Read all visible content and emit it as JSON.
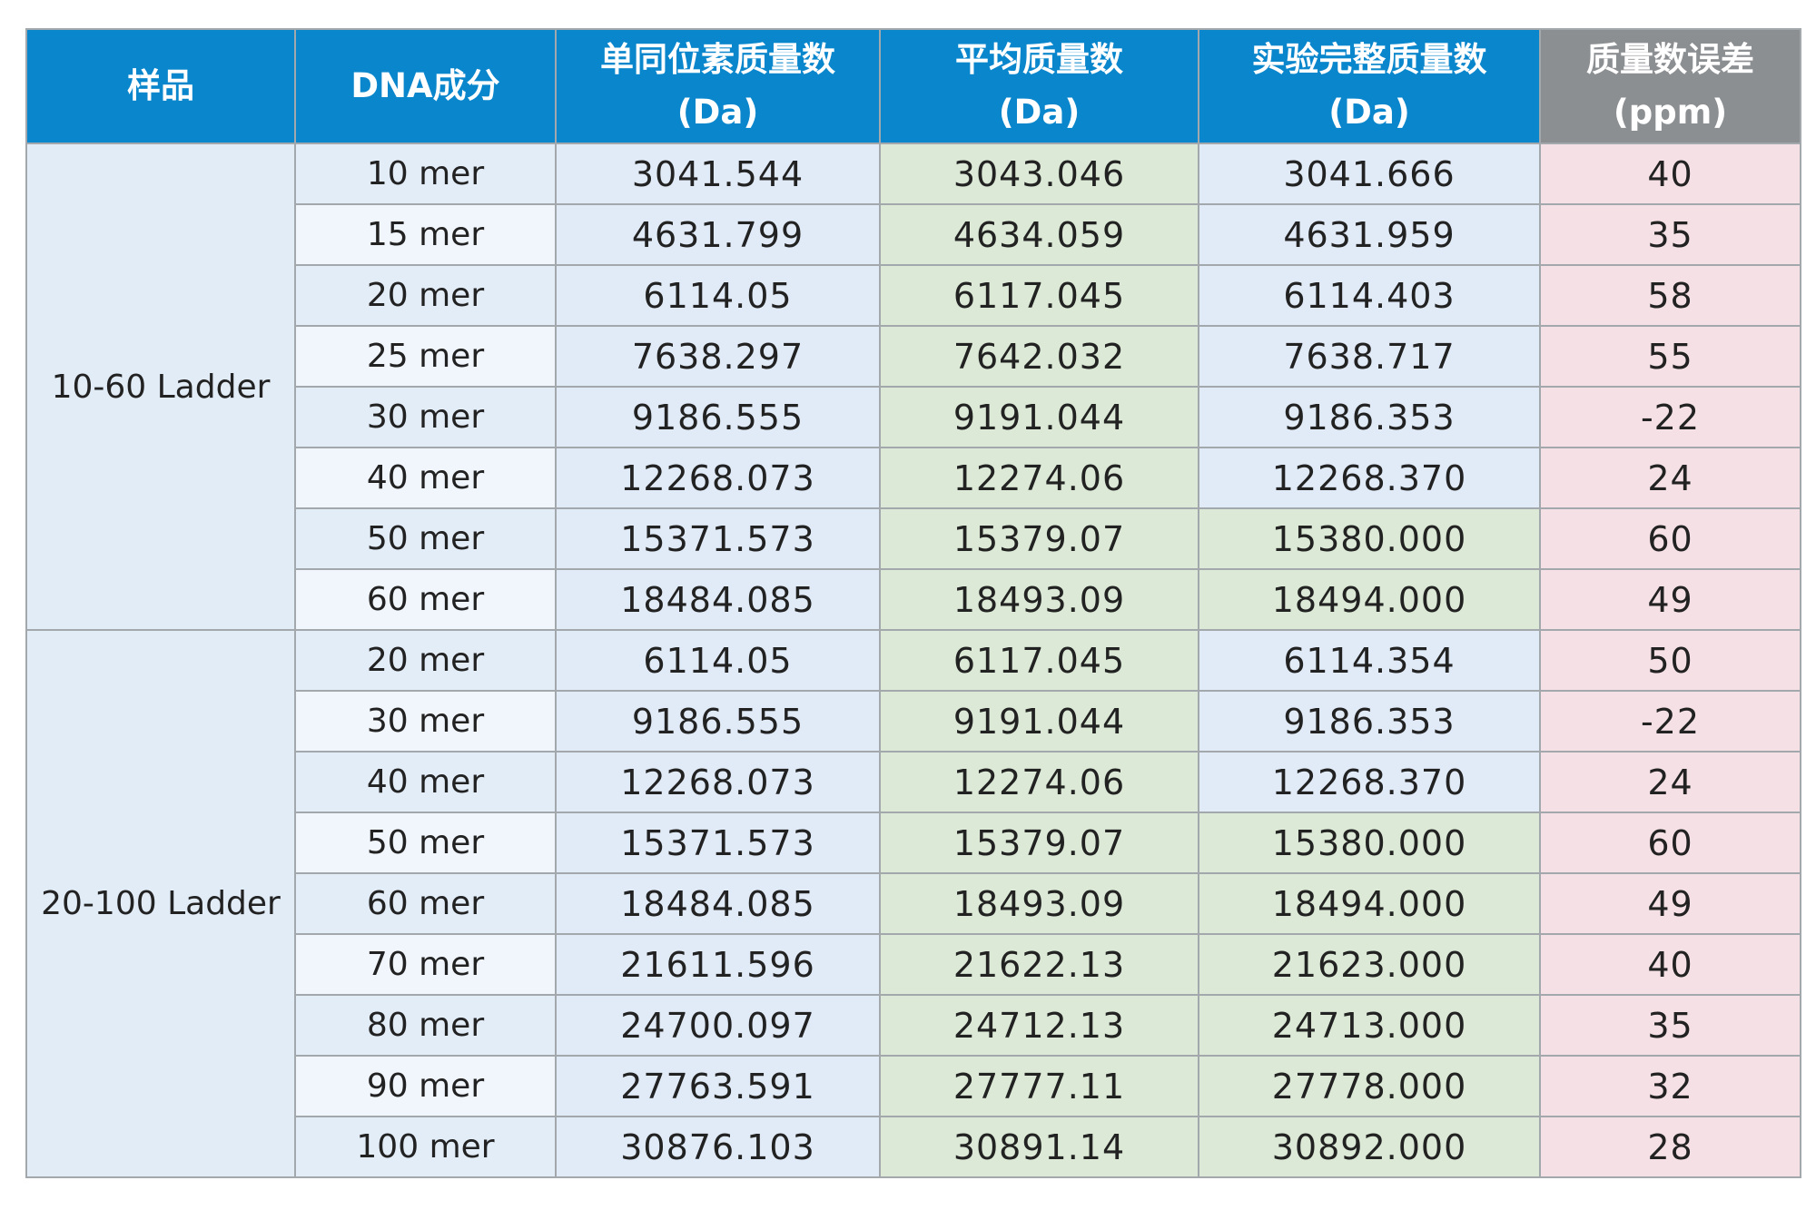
{
  "table": {
    "headers": [
      {
        "lines": [
          "样品"
        ]
      },
      {
        "lines": [
          "DNA成分"
        ]
      },
      {
        "lines": [
          "单同位素质量数",
          "(Da)"
        ]
      },
      {
        "lines": [
          "平均质量数",
          "(Da)"
        ]
      },
      {
        "lines": [
          "实验完整质量数",
          "(Da)"
        ]
      },
      {
        "lines": [
          "质量数误差",
          "(ppm)"
        ]
      }
    ],
    "colors": {
      "header_blue": "#0a86cc",
      "header_gray": "#8c8f92",
      "cell_blue": "#e1ebf7",
      "cell_green": "#dbe9d6",
      "cell_pink": "#f5e1e5",
      "row_alt_light": "#f1f6fc"
    },
    "groups": [
      {
        "sample": "10-60 Ladder",
        "rows": [
          {
            "component": "10 mer",
            "mono": "3041.544",
            "average": "3043.046",
            "experimental": "3041.666",
            "exp_color": "blue",
            "ppm": "40"
          },
          {
            "component": "15 mer",
            "mono": "4631.799",
            "average": "4634.059",
            "experimental": "4631.959",
            "exp_color": "blue",
            "ppm": "35"
          },
          {
            "component": "20 mer",
            "mono": "6114.05",
            "average": "6117.045",
            "experimental": "6114.403",
            "exp_color": "blue",
            "ppm": "58"
          },
          {
            "component": "25 mer",
            "mono": "7638.297",
            "average": "7642.032",
            "experimental": "7638.717",
            "exp_color": "blue",
            "ppm": "55"
          },
          {
            "component": "30 mer",
            "mono": "9186.555",
            "average": "9191.044",
            "experimental": "9186.353",
            "exp_color": "blue",
            "ppm": "-22"
          },
          {
            "component": "40 mer",
            "mono": "12268.073",
            "average": "12274.06",
            "experimental": "12268.370",
            "exp_color": "blue",
            "ppm": "24"
          },
          {
            "component": "50 mer",
            "mono": "15371.573",
            "average": "15379.07",
            "experimental": "15380.000",
            "exp_color": "green",
            "ppm": "60"
          },
          {
            "component": "60 mer",
            "mono": "18484.085",
            "average": "18493.09",
            "experimental": "18494.000",
            "exp_color": "green",
            "ppm": "49"
          }
        ]
      },
      {
        "sample": "20-100 Ladder",
        "rows": [
          {
            "component": "20 mer",
            "mono": "6114.05",
            "average": "6117.045",
            "experimental": "6114.354",
            "exp_color": "blue",
            "ppm": "50"
          },
          {
            "component": "30 mer",
            "mono": "9186.555",
            "average": "9191.044",
            "experimental": "9186.353",
            "exp_color": "blue",
            "ppm": "-22"
          },
          {
            "component": "40 mer",
            "mono": "12268.073",
            "average": "12274.06",
            "experimental": "12268.370",
            "exp_color": "blue",
            "ppm": "24"
          },
          {
            "component": "50 mer",
            "mono": "15371.573",
            "average": "15379.07",
            "experimental": "15380.000",
            "exp_color": "green",
            "ppm": "60"
          },
          {
            "component": "60 mer",
            "mono": "18484.085",
            "average": "18493.09",
            "experimental": "18494.000",
            "exp_color": "green",
            "ppm": "49"
          },
          {
            "component": "70 mer",
            "mono": "21611.596",
            "average": "21622.13",
            "experimental": "21623.000",
            "exp_color": "green",
            "ppm": "40"
          },
          {
            "component": "80 mer",
            "mono": "24700.097",
            "average": "24712.13",
            "experimental": "24713.000",
            "exp_color": "green",
            "ppm": "35"
          },
          {
            "component": "90 mer",
            "mono": "27763.591",
            "average": "27777.11",
            "experimental": "27778.000",
            "exp_color": "green",
            "ppm": "32"
          },
          {
            "component": "100 mer",
            "mono": "30876.103",
            "average": "30891.14",
            "experimental": "30892.000",
            "exp_color": "green",
            "ppm": "28"
          }
        ]
      }
    ]
  }
}
